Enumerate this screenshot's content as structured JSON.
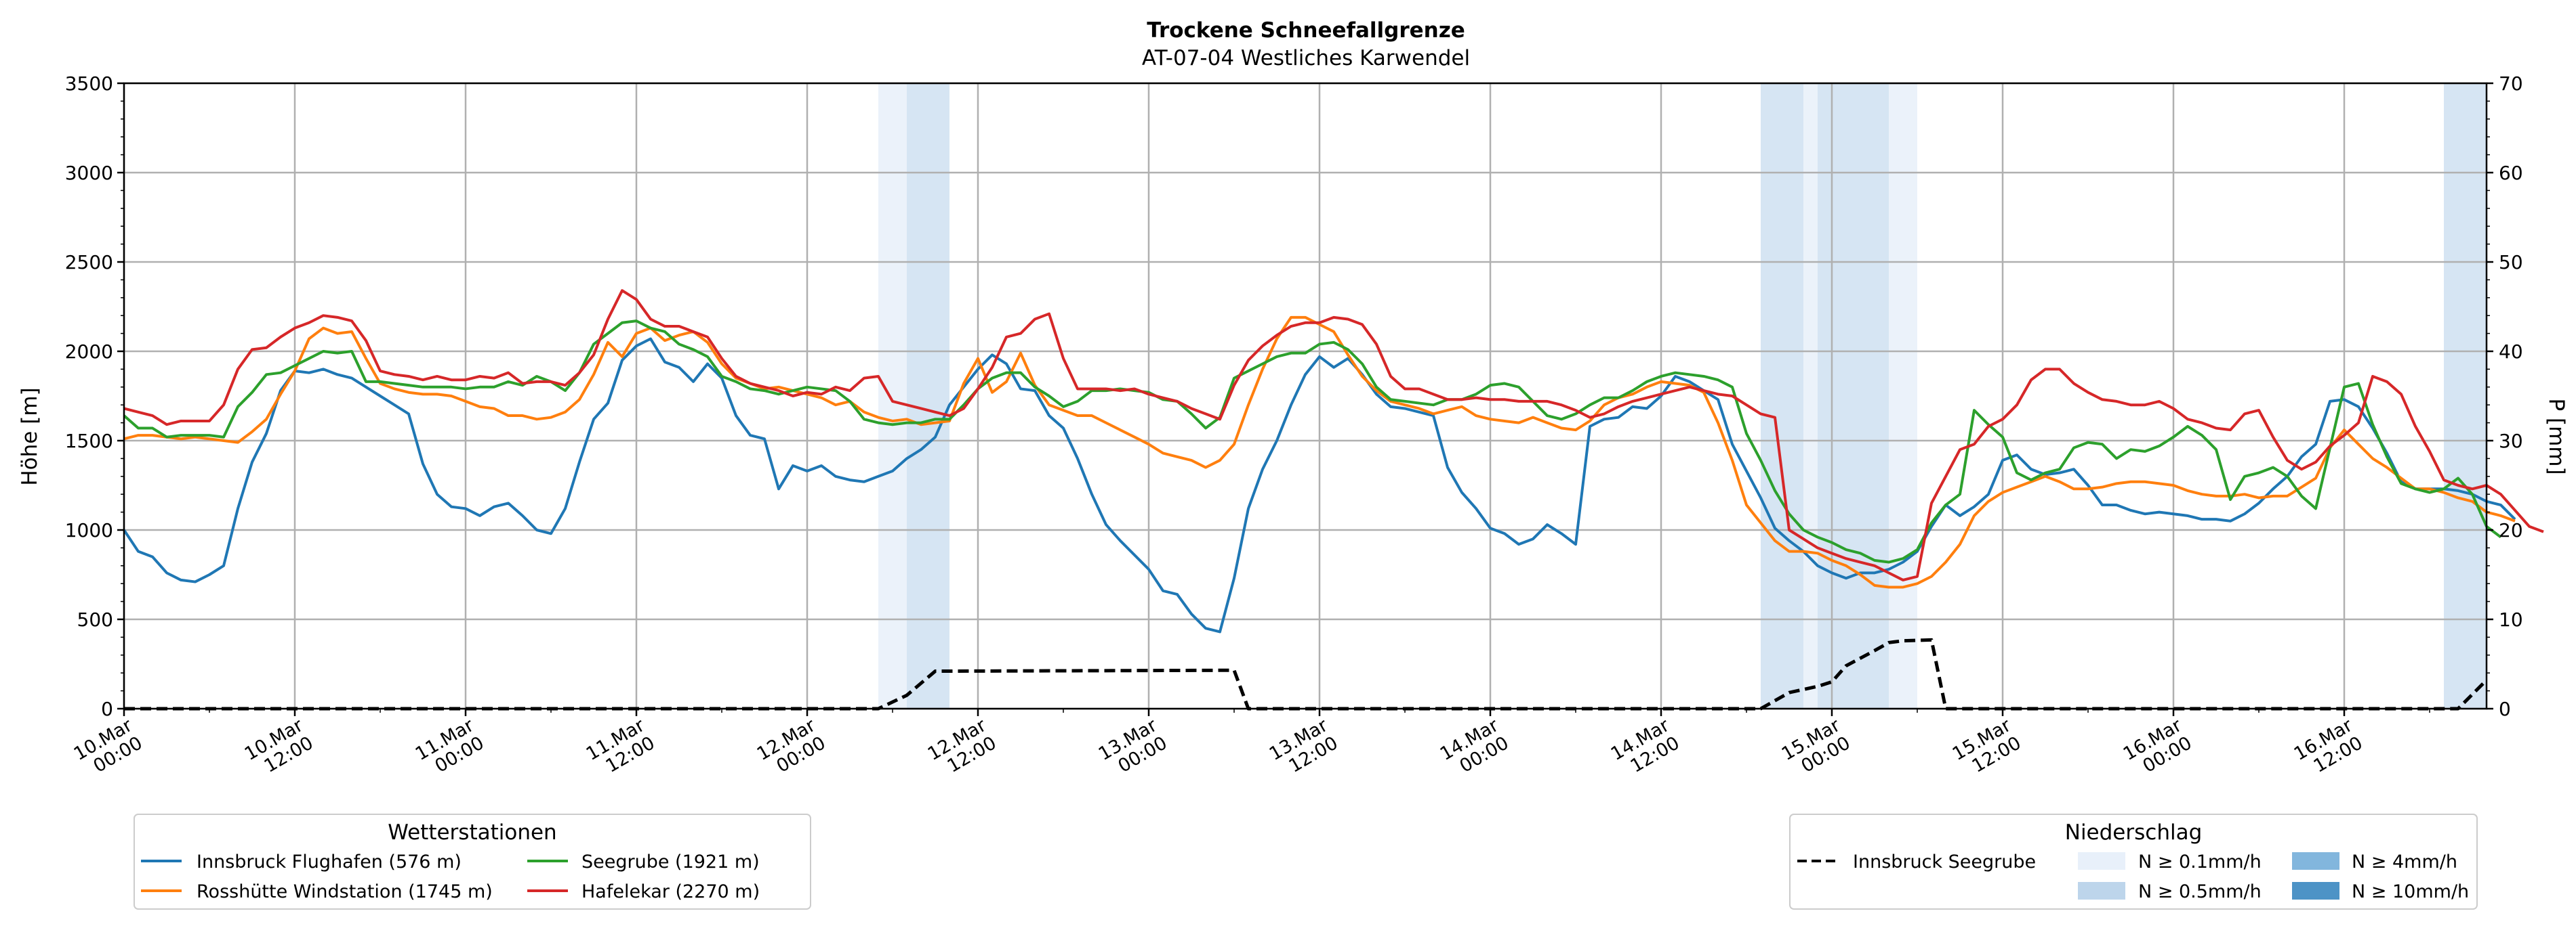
{
  "chart_data": {
    "type": "line",
    "title": "Trockene Schneefallgrenze",
    "subtitle": "AT-07-04 Westliches Karwendel",
    "ylabel_left": "Höhe [m]",
    "ylabel_right": "P [mm]",
    "ylim_left": [
      0,
      3500
    ],
    "ylim_right": [
      0,
      70
    ],
    "yticks_left": [
      "0",
      "500",
      "1000",
      "1500",
      "2000",
      "2500",
      "3000",
      "3500"
    ],
    "yticks_right": [
      "0",
      "10",
      "20",
      "30",
      "40",
      "50",
      "60",
      "70"
    ],
    "x_range_hours": [
      0,
      166
    ],
    "xticks": [
      {
        "h": 0,
        "l1": "10.Mar",
        "l2": "00:00"
      },
      {
        "h": 12,
        "l1": "10.Mar",
        "l2": "12:00"
      },
      {
        "h": 24,
        "l1": "11.Mar",
        "l2": "00:00"
      },
      {
        "h": 36,
        "l1": "11.Mar",
        "l2": "12:00"
      },
      {
        "h": 48,
        "l1": "12.Mar",
        "l2": "00:00"
      },
      {
        "h": 60,
        "l1": "12.Mar",
        "l2": "12:00"
      },
      {
        "h": 72,
        "l1": "13.Mar",
        "l2": "00:00"
      },
      {
        "h": 84,
        "l1": "13.Mar",
        "l2": "12:00"
      },
      {
        "h": 96,
        "l1": "14.Mar",
        "l2": "00:00"
      },
      {
        "h": 108,
        "l1": "14.Mar",
        "l2": "12:00"
      },
      {
        "h": 120,
        "l1": "15.Mar",
        "l2": "00:00"
      },
      {
        "h": 132,
        "l1": "15.Mar",
        "l2": "12:00"
      },
      {
        "h": 144,
        "l1": "16.Mar",
        "l2": "00:00"
      },
      {
        "h": 156,
        "l1": "16.Mar",
        "l2": "12:00"
      }
    ],
    "grid": true,
    "precip_bands": [
      {
        "from": 53,
        "to": 55,
        "level": "N ≥ 0.1mm/h"
      },
      {
        "from": 55,
        "to": 58,
        "level": "N ≥ 0.5mm/h"
      },
      {
        "from": 115,
        "to": 118,
        "level": "N ≥ 0.5mm/h"
      },
      {
        "from": 118,
        "to": 119,
        "level": "N ≥ 0.1mm/h"
      },
      {
        "from": 119,
        "to": 124,
        "level": "N ≥ 0.5mm/h"
      },
      {
        "from": 124,
        "to": 126,
        "level": "N ≥ 0.1mm/h"
      },
      {
        "from": 163,
        "to": 166,
        "level": "N ≥ 0.5mm/h"
      }
    ],
    "series": [
      {
        "name": "Innsbruck Flughafen (576 m)",
        "color": "#1f77b4",
        "values": [
          1000,
          880,
          850,
          760,
          720,
          710,
          750,
          800,
          1120,
          1380,
          1540,
          1780,
          1890,
          1880,
          1900,
          1870,
          1850,
          1800,
          1750,
          1700,
          1650,
          1370,
          1200,
          1130,
          1120,
          1080,
          1130,
          1150,
          1080,
          1000,
          980,
          1120,
          1380,
          1620,
          1710,
          1950,
          2030,
          2070,
          1940,
          1910,
          1830,
          1930,
          1850,
          1640,
          1530,
          1510,
          1230,
          1360,
          1330,
          1360,
          1300,
          1280,
          1270,
          1300,
          1330,
          1400,
          1450,
          1520,
          1700,
          1800,
          1900,
          1980,
          1930,
          1790,
          1780,
          1640,
          1570,
          1400,
          1200,
          1030,
          940,
          860,
          780,
          660,
          640,
          530,
          450,
          430,
          730,
          1120,
          1340,
          1500,
          1700,
          1870,
          1970,
          1910,
          1960,
          1870,
          1760,
          1690,
          1680,
          1660,
          1640,
          1350,
          1210,
          1120,
          1010,
          980,
          920,
          950,
          1030,
          980,
          920,
          1580,
          1620,
          1630,
          1690,
          1680,
          1750,
          1860,
          1830,
          1780,
          1730,
          1480,
          1330,
          1180,
          1010,
          940,
          880,
          800,
          760,
          730,
          760,
          760,
          780,
          820,
          880,
          1020,
          1140,
          1080,
          1130,
          1200,
          1390,
          1420,
          1340,
          1310,
          1320,
          1340,
          1250,
          1140,
          1140,
          1110,
          1090,
          1100,
          1090,
          1080,
          1060,
          1060,
          1050,
          1090,
          1150,
          1230,
          1300,
          1410,
          1480,
          1720,
          1730,
          1690,
          1570,
          1430,
          1270,
          1230,
          1230,
          1230,
          1220,
          1200,
          1160,
          1140,
          1060
        ]
      },
      {
        "name": "Rosshütte Windstation (1745 m)",
        "color": "#ff7f0e",
        "values": [
          1510,
          1530,
          1530,
          1520,
          1510,
          1520,
          1510,
          1500,
          1490,
          1550,
          1620,
          1760,
          1890,
          2070,
          2130,
          2100,
          2110,
          1960,
          1820,
          1790,
          1770,
          1760,
          1760,
          1750,
          1720,
          1690,
          1680,
          1640,
          1640,
          1620,
          1630,
          1660,
          1730,
          1870,
          2050,
          1970,
          2100,
          2130,
          2060,
          2090,
          2110,
          2050,
          1930,
          1850,
          1820,
          1790,
          1800,
          1780,
          1760,
          1740,
          1700,
          1720,
          1660,
          1630,
          1610,
          1620,
          1590,
          1600,
          1610,
          1820,
          1960,
          1770,
          1830,
          1990,
          1810,
          1700,
          1670,
          1640,
          1640,
          1600,
          1560,
          1520,
          1480,
          1430,
          1410,
          1390,
          1350,
          1390,
          1480,
          1700,
          1900,
          2070,
          2190,
          2190,
          2150,
          2110,
          1980,
          1860,
          1780,
          1720,
          1700,
          1680,
          1650,
          1670,
          1690,
          1640,
          1620,
          1610,
          1600,
          1630,
          1600,
          1570,
          1560,
          1610,
          1700,
          1740,
          1760,
          1800,
          1830,
          1820,
          1810,
          1770,
          1600,
          1390,
          1140,
          1040,
          940,
          880,
          880,
          870,
          830,
          800,
          750,
          690,
          680,
          680,
          700,
          740,
          820,
          920,
          1080,
          1160,
          1210,
          1240,
          1270,
          1300,
          1270,
          1230,
          1230,
          1240,
          1260,
          1270,
          1270,
          1260,
          1250,
          1220,
          1200,
          1190,
          1190,
          1200,
          1180,
          1190,
          1190,
          1240,
          1290,
          1460,
          1560,
          1480,
          1400,
          1350,
          1290,
          1230,
          1230,
          1210,
          1180,
          1160,
          1100,
          1080,
          1050
        ]
      },
      {
        "name": "Seegrube (1921 m)",
        "color": "#2ca02c",
        "values": [
          1640,
          1570,
          1570,
          1520,
          1530,
          1530,
          1530,
          1520,
          1690,
          1770,
          1870,
          1880,
          1920,
          1960,
          2000,
          1990,
          2000,
          1830,
          1830,
          1820,
          1810,
          1800,
          1800,
          1800,
          1790,
          1800,
          1800,
          1830,
          1810,
          1860,
          1830,
          1780,
          1880,
          2040,
          2100,
          2160,
          2170,
          2130,
          2110,
          2040,
          2010,
          1970,
          1860,
          1830,
          1790,
          1780,
          1760,
          1780,
          1800,
          1790,
          1780,
          1720,
          1620,
          1600,
          1590,
          1600,
          1600,
          1620,
          1620,
          1700,
          1790,
          1850,
          1880,
          1880,
          1800,
          1750,
          1690,
          1720,
          1780,
          1780,
          1790,
          1780,
          1770,
          1730,
          1720,
          1650,
          1570,
          1630,
          1850,
          1890,
          1930,
          1970,
          1990,
          1990,
          2040,
          2050,
          2010,
          1930,
          1800,
          1730,
          1720,
          1710,
          1700,
          1730,
          1730,
          1760,
          1810,
          1820,
          1800,
          1720,
          1640,
          1620,
          1650,
          1700,
          1740,
          1740,
          1780,
          1830,
          1860,
          1880,
          1870,
          1860,
          1840,
          1800,
          1540,
          1390,
          1220,
          1090,
          1000,
          960,
          930,
          890,
          870,
          830,
          820,
          840,
          890,
          1040,
          1140,
          1200,
          1670,
          1590,
          1520,
          1320,
          1280,
          1320,
          1340,
          1460,
          1490,
          1480,
          1400,
          1450,
          1440,
          1470,
          1520,
          1580,
          1530,
          1450,
          1170,
          1300,
          1320,
          1350,
          1300,
          1190,
          1120,
          1460,
          1800,
          1820,
          1590,
          1410,
          1260,
          1230,
          1210,
          1230,
          1290,
          1200,
          1020,
          960
        ]
      },
      {
        "name": "Hafelekar (2270 m)",
        "color": "#d62728",
        "values": [
          1680,
          1660,
          1640,
          1590,
          1610,
          1610,
          1610,
          1700,
          1900,
          2010,
          2020,
          2080,
          2130,
          2160,
          2200,
          2190,
          2170,
          2060,
          1890,
          1870,
          1860,
          1840,
          1860,
          1840,
          1840,
          1860,
          1850,
          1880,
          1820,
          1830,
          1830,
          1810,
          1880,
          1980,
          2180,
          2340,
          2290,
          2180,
          2140,
          2140,
          2110,
          2080,
          1960,
          1860,
          1820,
          1800,
          1780,
          1750,
          1770,
          1760,
          1800,
          1780,
          1850,
          1860,
          1720,
          1700,
          1680,
          1660,
          1640,
          1680,
          1790,
          1910,
          2080,
          2100,
          2180,
          2210,
          1960,
          1790,
          1790,
          1790,
          1780,
          1790,
          1760,
          1740,
          1720,
          1680,
          1650,
          1620,
          1810,
          1950,
          2030,
          2090,
          2140,
          2160,
          2160,
          2190,
          2180,
          2150,
          2040,
          1860,
          1790,
          1790,
          1760,
          1730,
          1730,
          1740,
          1730,
          1730,
          1720,
          1720,
          1720,
          1700,
          1670,
          1630,
          1650,
          1690,
          1720,
          1740,
          1760,
          1780,
          1800,
          1780,
          1760,
          1750,
          1700,
          1650,
          1630,
          1000,
          950,
          900,
          870,
          840,
          820,
          800,
          760,
          720,
          740,
          1150,
          1300,
          1450,
          1480,
          1580,
          1620,
          1700,
          1840,
          1900,
          1900,
          1820,
          1770,
          1730,
          1720,
          1700,
          1700,
          1720,
          1680,
          1620,
          1600,
          1570,
          1560,
          1650,
          1670,
          1520,
          1390,
          1340,
          1380,
          1470,
          1530,
          1600,
          1860,
          1830,
          1760,
          1580,
          1440,
          1280,
          1250,
          1230,
          1250,
          1200,
          1110,
          1020,
          990
        ]
      },
      {
        "name": "Innsbruck Seegrube",
        "axis": "right",
        "style": "dashed",
        "color": "#000000",
        "points": [
          [
            0,
            0
          ],
          [
            53,
            0
          ],
          [
            55,
            1.5
          ],
          [
            57,
            4.2
          ],
          [
            78,
            4.3
          ],
          [
            79,
            0
          ],
          [
            115,
            0
          ],
          [
            117,
            1.8
          ],
          [
            119,
            2.5
          ],
          [
            120,
            3.0
          ],
          [
            121,
            4.8
          ],
          [
            123,
            6.5
          ],
          [
            124,
            7.4
          ],
          [
            125,
            7.6
          ],
          [
            127,
            7.7
          ],
          [
            128,
            0
          ],
          [
            164,
            0
          ],
          [
            166,
            3.2
          ]
        ]
      }
    ]
  },
  "legend_stations": {
    "title": "Wetterstationen",
    "items": [
      {
        "label": "Innsbruck Flughafen (576 m)",
        "color": "#1f77b4"
      },
      {
        "label": "Seegrube (1921 m)",
        "color": "#2ca02c"
      },
      {
        "label": "Rosshütte Windstation (1745 m)",
        "color": "#ff7f0e"
      },
      {
        "label": "Hafelekar (2270 m)",
        "color": "#d62728"
      }
    ]
  },
  "legend_precip": {
    "title": "Niederschlag",
    "line_label": "Innsbruck Seegrube",
    "levels": [
      {
        "label": "N ≥ 0.1mm/h",
        "color": "#e8f0fa"
      },
      {
        "label": "N ≥ 4mm/h",
        "color": "#82b6dd"
      },
      {
        "label": "N ≥ 0.5mm/h",
        "color": "#bdd5eb"
      },
      {
        "label": "N ≥ 10mm/h",
        "color": "#4d93c6"
      }
    ]
  },
  "band_colors": {
    "N ≥ 0.1mm/h": "#ebf2fa",
    "N ≥ 0.5mm/h": "#d6e5f3"
  }
}
